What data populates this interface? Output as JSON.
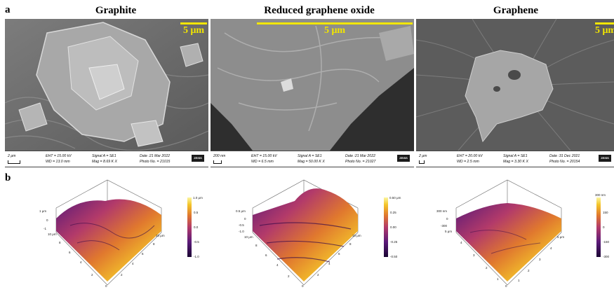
{
  "panel_a": {
    "letter": "a",
    "images": [
      {
        "title": "Graphite",
        "scale_label": "5 μm",
        "info": {
          "bar": "2 μm",
          "eht": "EHT = 15.00 kV",
          "wd": "WD = 13.0 mm",
          "signal": "Signal A = SE1",
          "mag": "Mag =   8.69 K X",
          "date": "Date :21 Mar 2022",
          "photo": "Photo No. = 21015",
          "logo": "ZEISS"
        }
      },
      {
        "title": "Reduced graphene oxide",
        "scale_label": "5 μm",
        "info": {
          "bar": "200 nm",
          "eht": "EHT = 15.00 kV",
          "wd": "WD =  6.5 mm",
          "signal": "Signal A = SE1",
          "mag": "Mag =  50.00 K X",
          "date": "Date :21 Mar 2022",
          "photo": "Photo No. = 21027",
          "logo": "ZEISS"
        }
      },
      {
        "title": "Graphene",
        "scale_label": "5 μm",
        "info": {
          "bar": "2 μm",
          "eht": "EHT = 20.00 kV",
          "wd": "WD =  2.5 mm",
          "signal": "Signal A = SE1",
          "mag": "Mag =   3.30 K X",
          "date": "Date :31 Dec 2021",
          "photo": "Photo No. = 20154",
          "logo": "ZEISS"
        }
      }
    ]
  },
  "panel_b": {
    "letter": "b",
    "plots": [
      {
        "z_labels": [
          "1 μm",
          "0",
          "-1"
        ],
        "axis_labels": [
          "10 μm",
          "8",
          "6",
          "4",
          "2",
          "0",
          "10 μm",
          "8",
          "6",
          "4",
          "2"
        ],
        "colorbar": [
          "1.0 μm",
          "0.5",
          "0.0",
          "-0.5",
          "-1.0"
        ]
      },
      {
        "z_labels": [
          "0.5 μm",
          "0",
          "-0.5",
          "-1.0"
        ],
        "axis_labels": [
          "10 μm",
          "8",
          "6",
          "4",
          "2",
          "0",
          "10 μm",
          "8",
          "6",
          "4",
          "2"
        ],
        "colorbar": [
          "0.50 μm",
          "0.25",
          "0.00",
          "-0.25",
          "-0.50"
        ]
      },
      {
        "z_labels": [
          "300 nm",
          "0",
          "-300",
          "5 μm"
        ],
        "axis_labels": [
          "4",
          "3",
          "2",
          "1",
          "0",
          "5 μm",
          "4",
          "3",
          "2",
          "1"
        ],
        "colorbar": [
          "300 nm",
          "150",
          "0",
          "-150",
          "-300"
        ]
      }
    ]
  },
  "colors": {
    "scale_bar": "#f2e600",
    "afm_colormap": [
      "#1a0633",
      "#5a1a78",
      "#b23a6a",
      "#e0782e",
      "#f4c62a",
      "#fbf5a0"
    ]
  }
}
